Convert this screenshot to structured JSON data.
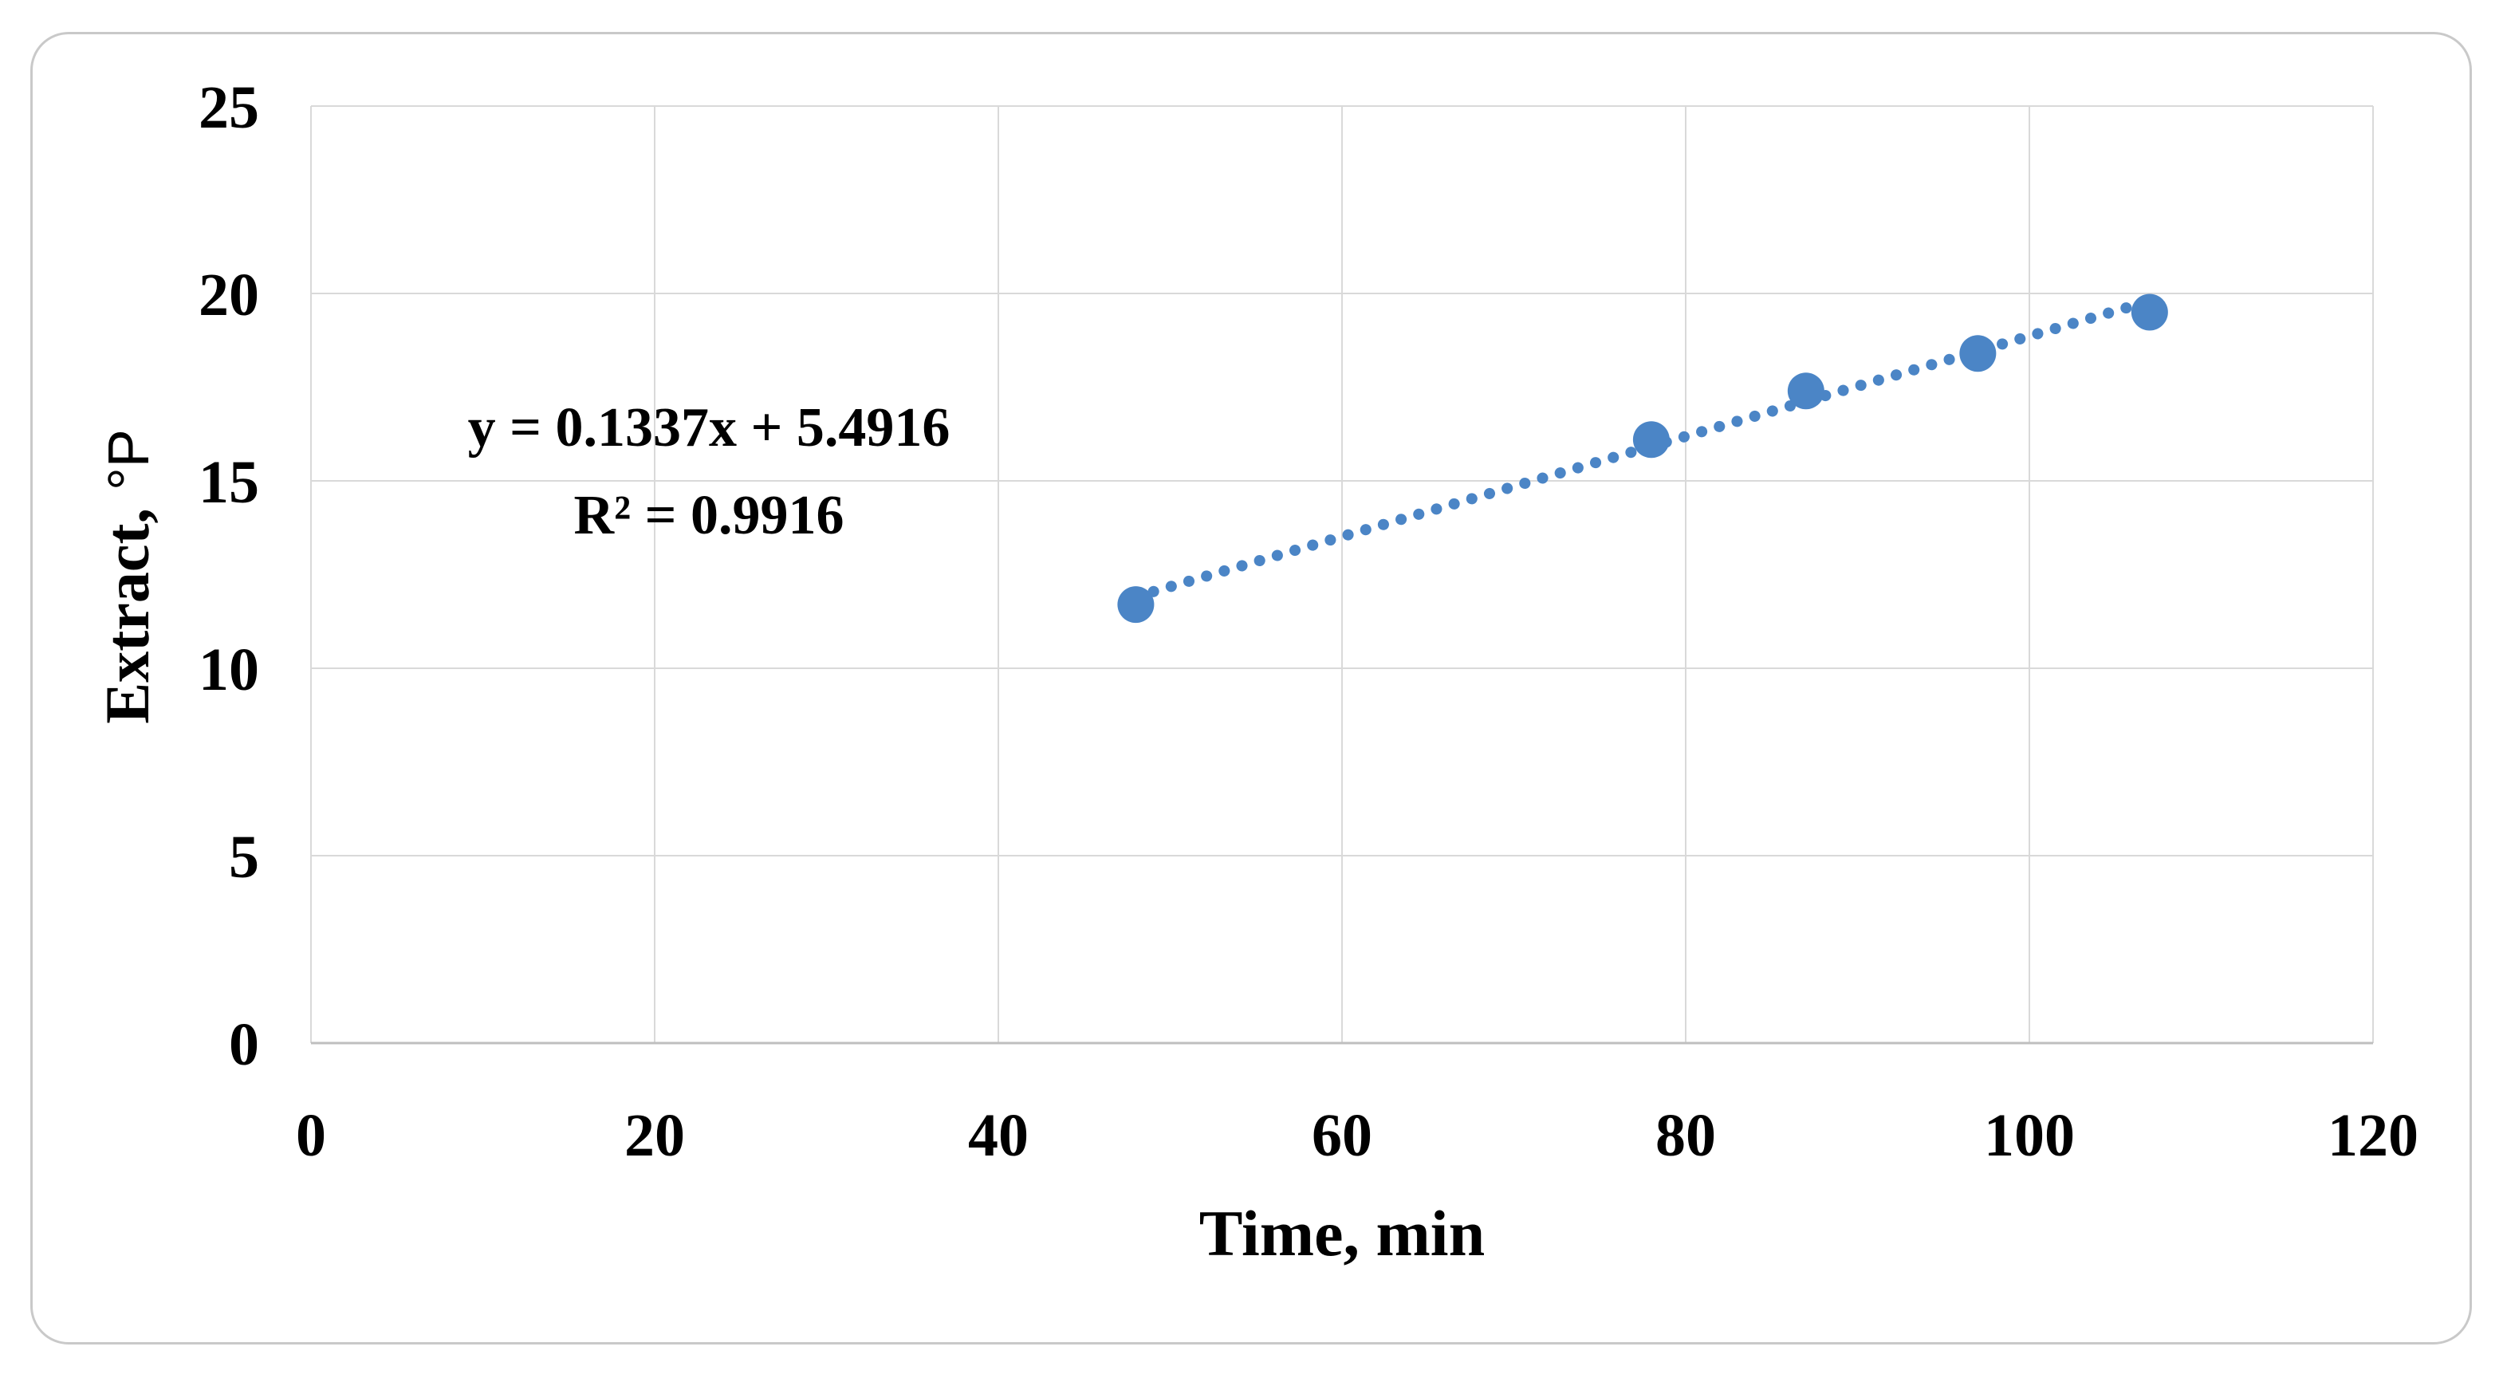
{
  "figure": {
    "background": "#FFFFFF",
    "border_color": "#C9C9C9"
  },
  "chart_data": {
    "type": "scatter",
    "title": "",
    "xlabel": "Time, min",
    "ylabel": "Extract, °P",
    "ylabel_main": "Extract,",
    "ylabel_unit": "°P",
    "x": [
      48,
      78,
      87,
      97,
      107
    ],
    "y": [
      11.7,
      16.1,
      17.4,
      18.4,
      19.5
    ],
    "xlim": [
      0,
      120
    ],
    "ylim": [
      0,
      25
    ],
    "xticks": [
      0,
      20,
      40,
      60,
      80,
      100,
      120
    ],
    "yticks": [
      0,
      5,
      10,
      15,
      20,
      25
    ],
    "grid": true,
    "legend": "none",
    "trendline": {
      "type": "linear",
      "style": "dotted",
      "slope": 0.1337,
      "intercept": 5.4916,
      "x_start": 48,
      "x_end": 107.5,
      "equation_label": "y = 0.1337x + 5.4916",
      "r_squared_label": "R² = 0.9916"
    },
    "colors": {
      "marker": "#4B85C6",
      "trendline": "#4B85C6",
      "gridline": "#D9D9D9",
      "axis_line": "#BFBFBF",
      "text": "#000000"
    }
  }
}
